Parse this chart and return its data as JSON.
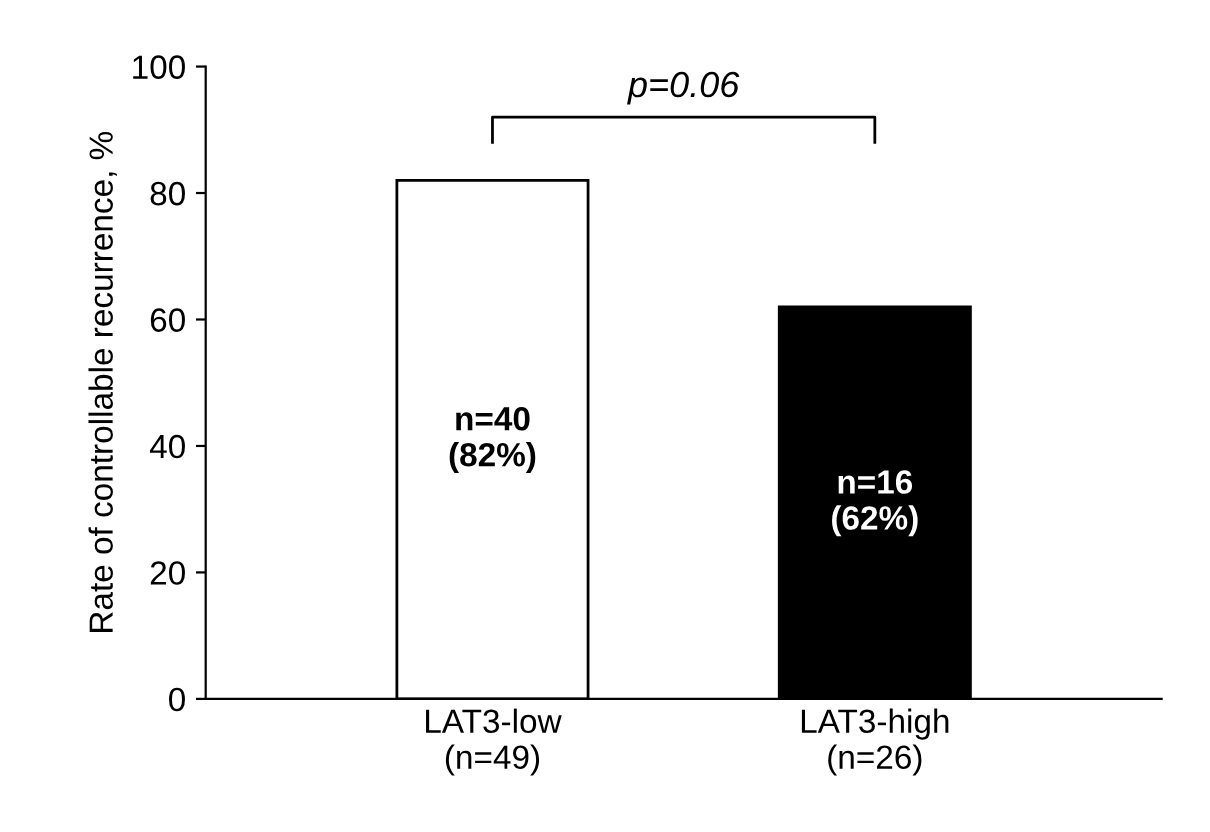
{
  "chart_data": {
    "type": "bar",
    "categories": [
      "LAT3-low\n(n=49)",
      "LAT3-high\n(n=26)"
    ],
    "values": [
      82,
      62
    ],
    "colors": [
      "#ffffff",
      "#000000"
    ],
    "value_labels": [
      "n=40\n(82%)",
      "n=16\n(62%)"
    ],
    "ylabel": "Rate of controllable recurrence, %",
    "ylim": [
      0,
      100
    ],
    "yticks": [
      0,
      20,
      40,
      60,
      80,
      100
    ],
    "annotations": [
      "p=0.06"
    ],
    "grid": false,
    "legend": false
  }
}
